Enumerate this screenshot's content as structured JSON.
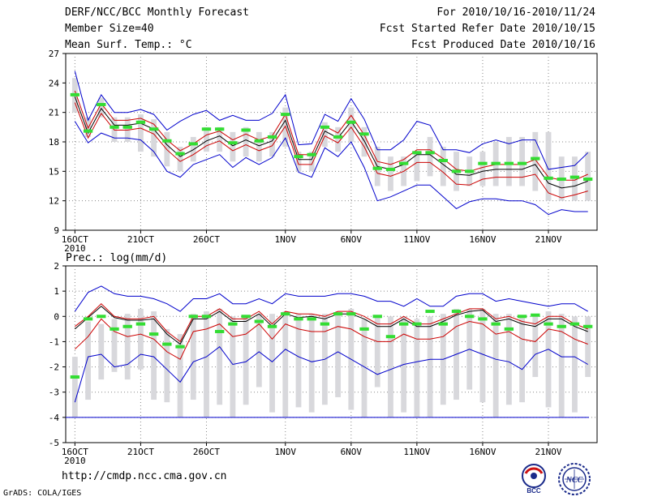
{
  "header": {
    "left": [
      "DERF/NCC/BCC Monthly Forecast",
      "Member Size=40",
      "Mean Surf. Temp.: °C"
    ],
    "right": [
      "For 2010/10/16-2010/11/24",
      "Fcst Started Refer Date 2010/10/15",
      "Fcst Produced Date 2010/10/16"
    ]
  },
  "footer": {
    "url": "http://cmdp.ncc.cma.gov.cn",
    "grads": "GrADS: COLA/IGES"
  },
  "logos": {
    "bcc": "BCC",
    "ncc": "NCC"
  },
  "colors": {
    "box": "#d8d8dc",
    "median": "#000000",
    "band_inner": "#cc0000",
    "band_outer": "#0000cc",
    "obs": "#33dd33",
    "grid": "#888888"
  },
  "chart_data": [
    {
      "type": "line",
      "title": "Mean Surf. Temp.: °C",
      "xlabel": "",
      "ylabel": "",
      "ylim": [
        9,
        27
      ],
      "yticks": [
        9,
        12,
        15,
        18,
        21,
        24,
        27
      ],
      "x": [
        1,
        2,
        3,
        4,
        5,
        6,
        7,
        8,
        9,
        10,
        11,
        12,
        13,
        14,
        15,
        16,
        17,
        18,
        19,
        20,
        21,
        22,
        23,
        24,
        25,
        26,
        27,
        28,
        29,
        30,
        31,
        32,
        33,
        34,
        35,
        36,
        37,
        38,
        39,
        40
      ],
      "xtick_labels": [
        {
          "day": 1,
          "label": "16OCT",
          "sub": "2010"
        },
        {
          "day": 6,
          "label": "21OCT"
        },
        {
          "day": 11,
          "label": "26OCT"
        },
        {
          "day": 17,
          "label": "1NOV"
        },
        {
          "day": 22,
          "label": "6NOV"
        },
        {
          "day": 27,
          "label": "11NOV"
        },
        {
          "day": 32,
          "label": "16NOV"
        },
        {
          "day": 37,
          "label": "21NOV"
        }
      ],
      "series": [
        {
          "name": "box_max",
          "values": [
            24.5,
            20.5,
            22.5,
            20.5,
            20.5,
            20.8,
            20.3,
            19,
            17.5,
            18.5,
            19.5,
            19.5,
            19,
            19.5,
            19,
            19,
            21.5,
            17,
            17,
            20,
            19.5,
            21.5,
            19.5,
            17.5,
            16.5,
            16.5,
            17,
            18.5,
            17.5,
            17,
            16.5,
            17,
            18,
            18.5,
            18.5,
            19,
            19,
            16.5,
            16.5,
            17
          ]
        },
        {
          "name": "box_min",
          "values": [
            21,
            18.5,
            20.5,
            18,
            18,
            17,
            16.5,
            15.5,
            15,
            16,
            17,
            17,
            16,
            16.5,
            16,
            16.5,
            17.5,
            15,
            15,
            17.5,
            17,
            18,
            16.5,
            13.5,
            13,
            13.5,
            14,
            14.5,
            13.5,
            13,
            13.5,
            13.5,
            13.5,
            13.5,
            13.5,
            13,
            12,
            12,
            12,
            12
          ]
        },
        {
          "name": "outer_upper",
          "values": [
            25.2,
            20.2,
            22.8,
            21,
            21,
            21.3,
            20.8,
            19.2,
            20.1,
            20.8,
            21.2,
            20.2,
            20.7,
            20.2,
            20.2,
            20.9,
            22.8,
            17.7,
            17.8,
            20.8,
            20.1,
            22.4,
            20.3,
            17.2,
            17.2,
            18.2,
            20.1,
            19.7,
            17.2,
            17.2,
            16.9,
            17.8,
            18.2,
            17.8,
            18.2,
            18.2,
            15.2,
            15.4,
            15.6,
            16.9
          ]
        },
        {
          "name": "inner_upper",
          "values": [
            23.2,
            19.4,
            21.9,
            20.2,
            20.2,
            20.4,
            19.8,
            18.2,
            17.1,
            17.8,
            18.7,
            19.1,
            18.2,
            18.8,
            18.2,
            18.6,
            20.8,
            16.7,
            16.7,
            19.6,
            18.9,
            20.7,
            18.7,
            16,
            15.7,
            16.2,
            17.2,
            17.2,
            16.3,
            15.2,
            15,
            15.4,
            15.7,
            15.7,
            15.7,
            16.2,
            14.4,
            14.1,
            14.1,
            14.7
          ]
        },
        {
          "name": "median",
          "values": [
            22.6,
            18.9,
            21.4,
            19.7,
            19.7,
            19.9,
            19.3,
            17.7,
            16.5,
            17.2,
            18.1,
            18.6,
            17.6,
            18.2,
            17.6,
            18.1,
            20.2,
            16.2,
            16.2,
            19.1,
            18.4,
            20.1,
            18.1,
            15.5,
            15.2,
            15.7,
            16.7,
            16.7,
            15.7,
            14.7,
            14.6,
            15,
            15.2,
            15.2,
            15.2,
            15.7,
            13.8,
            13.3,
            13.5,
            14
          ]
        },
        {
          "name": "inner_lower",
          "values": [
            22,
            18.4,
            20.9,
            19.2,
            19.2,
            19.4,
            18.8,
            17.2,
            16,
            16.7,
            17.6,
            18.1,
            17.1,
            17.7,
            17.1,
            17.6,
            19.6,
            15.7,
            15.7,
            18.6,
            17.9,
            19.5,
            17.5,
            14.8,
            14.5,
            15,
            15.9,
            15.9,
            14.9,
            13.7,
            13.6,
            14.2,
            14.4,
            14.4,
            14.4,
            14.7,
            12.8,
            12.3,
            12.6,
            13
          ]
        },
        {
          "name": "outer_lower",
          "values": [
            20.1,
            17.9,
            18.9,
            18.4,
            18.4,
            18.2,
            17,
            15,
            14.4,
            15.7,
            16.2,
            16.7,
            15.4,
            16.4,
            15.7,
            16.4,
            18.4,
            14.9,
            14.4,
            17.4,
            16.5,
            18,
            15.4,
            12,
            12.4,
            13,
            13.6,
            13.6,
            12.4,
            11.2,
            11.9,
            12.2,
            12.2,
            12,
            12,
            11.6,
            10.6,
            11.1,
            10.9,
            10.9
          ]
        },
        {
          "name": "observed",
          "values": [
            22.8,
            19.1,
            21.8,
            19.5,
            19.5,
            20,
            19.3,
            18.1,
            16.8,
            17.8,
            19.3,
            19.3,
            17.9,
            19.2,
            18.1,
            18.5,
            20.8,
            16.5,
            16.7,
            19.5,
            18.5,
            20,
            18.8,
            15.3,
            15.2,
            15.8,
            16.9,
            16.9,
            16.1,
            15,
            15,
            15.8,
            15.8,
            15.8,
            15.8,
            16.3,
            14.3,
            14.2,
            14.4,
            14.2
          ]
        }
      ]
    },
    {
      "type": "line",
      "title": "Prec.: log(mm/d)",
      "xlabel": "",
      "ylabel": "",
      "ylim": [
        -5,
        2
      ],
      "yticks": [
        -5,
        -4,
        -3,
        -2,
        -1,
        0,
        1,
        2
      ],
      "x": [
        1,
        2,
        3,
        4,
        5,
        6,
        7,
        8,
        9,
        10,
        11,
        12,
        13,
        14,
        15,
        16,
        17,
        18,
        19,
        20,
        21,
        22,
        23,
        24,
        25,
        26,
        27,
        28,
        29,
        30,
        31,
        32,
        33,
        34,
        35,
        36,
        37,
        38,
        39,
        40
      ],
      "xtick_labels": [
        {
          "day": 1,
          "label": "16OCT",
          "sub": "2010"
        },
        {
          "day": 6,
          "label": "21OCT"
        },
        {
          "day": 11,
          "label": "26OCT"
        },
        {
          "day": 17,
          "label": "1NOV"
        },
        {
          "day": 22,
          "label": "6NOV"
        },
        {
          "day": 27,
          "label": "11NOV"
        },
        {
          "day": 32,
          "label": "16NOV"
        },
        {
          "day": 37,
          "label": "21NOV"
        }
      ],
      "series": [
        {
          "name": "box_max",
          "values": [
            -1.6,
            -0.2,
            -0.3,
            -0.1,
            0.1,
            0.3,
            0.2,
            -0.5,
            -0.7,
            0.1,
            0.2,
            0.3,
            0,
            0,
            0.1,
            0.1,
            0.2,
            0.1,
            0.1,
            0.1,
            0.2,
            0.3,
            -0.1,
            0,
            0,
            0,
            -0.1,
            0,
            0.1,
            0.3,
            0.3,
            0.3,
            0.1,
            0.1,
            0,
            0,
            0.2,
            0.1,
            0,
            0
          ]
        },
        {
          "name": "box_min",
          "values": [
            -4,
            -3.3,
            -2.5,
            -2.2,
            -2.5,
            -2.1,
            -3.3,
            -3.4,
            -4,
            -3.3,
            -4,
            -3.5,
            -4,
            -3.5,
            -2.8,
            -3.8,
            -4,
            -3.6,
            -3.8,
            -3.5,
            -3.2,
            -3.7,
            -4,
            -2.8,
            -4,
            -3.8,
            -4,
            -4,
            -3.5,
            -3.3,
            -2.9,
            -3.4,
            -4,
            -3.5,
            -3.4,
            -2.4,
            -3.6,
            -4,
            -3.8,
            -2.4
          ]
        },
        {
          "name": "outer_upper",
          "values": [
            0.2,
            0.95,
            1.2,
            0.9,
            0.8,
            0.8,
            0.7,
            0.5,
            0.2,
            0.7,
            0.7,
            0.9,
            0.5,
            0.5,
            0.7,
            0.5,
            0.9,
            0.8,
            0.8,
            0.8,
            0.9,
            0.9,
            0.8,
            0.6,
            0.6,
            0.4,
            0.7,
            0.4,
            0.4,
            0.8,
            0.9,
            0.9,
            0.6,
            0.7,
            0.6,
            0.5,
            0.4,
            0.5,
            0.5,
            0.2
          ]
        },
        {
          "name": "inner_upper",
          "values": [
            -0.4,
            0,
            0.5,
            0,
            -0.1,
            -0.1,
            0,
            -0.6,
            -1,
            0,
            0,
            0.3,
            -0.1,
            -0.1,
            0.2,
            -0.3,
            0.2,
            0.1,
            0.1,
            0,
            0.2,
            0.2,
            0,
            -0.3,
            -0.3,
            0,
            -0.3,
            -0.3,
            -0.1,
            0.1,
            0.3,
            0.3,
            -0.1,
            0,
            -0.2,
            -0.3,
            0,
            0,
            -0.3,
            -0.5
          ]
        },
        {
          "name": "median",
          "values": [
            -0.5,
            -0.05,
            0.4,
            -0.05,
            -0.15,
            -0.15,
            -0.1,
            -0.7,
            -1.1,
            -0.1,
            -0.1,
            0.2,
            -0.2,
            -0.2,
            0.1,
            -0.4,
            0.1,
            -0.05,
            0,
            -0.1,
            0.1,
            0.1,
            -0.1,
            -0.4,
            -0.4,
            -0.1,
            -0.4,
            -0.4,
            -0.2,
            0.05,
            0.2,
            0.25,
            -0.2,
            -0.1,
            -0.3,
            -0.4,
            -0.1,
            -0.1,
            -0.4,
            -0.6
          ]
        },
        {
          "name": "inner_lower",
          "values": [
            -1.3,
            -0.8,
            -0.1,
            -0.6,
            -0.8,
            -0.7,
            -0.9,
            -1.4,
            -1.7,
            -0.6,
            -0.5,
            -0.3,
            -0.8,
            -0.7,
            -0.3,
            -0.9,
            -0.3,
            -0.5,
            -0.6,
            -0.6,
            -0.4,
            -0.5,
            -0.8,
            -1,
            -1,
            -0.7,
            -0.9,
            -0.9,
            -0.8,
            -0.4,
            -0.2,
            -0.3,
            -0.7,
            -0.6,
            -0.9,
            -1,
            -0.5,
            -0.6,
            -0.9,
            -1.1
          ]
        },
        {
          "name": "outer_lower",
          "values": [
            -3.4,
            -1.6,
            -1.5,
            -2,
            -1.9,
            -1.5,
            -1.6,
            -2.1,
            -2.6,
            -1.8,
            -1.6,
            -1.2,
            -1.9,
            -1.8,
            -1.4,
            -1.8,
            -1.3,
            -1.6,
            -1.8,
            -1.7,
            -1.4,
            -1.7,
            -2,
            -2.3,
            -2.1,
            -1.9,
            -1.8,
            -1.7,
            -1.7,
            -1.5,
            -1.3,
            -1.5,
            -1.7,
            -1.8,
            -2.1,
            -1.5,
            -1.3,
            -1.6,
            -1.6,
            -1.9
          ]
        },
        {
          "name": "observed",
          "values": [
            -2.4,
            -0.1,
            0,
            -0.5,
            -0.4,
            -0.3,
            -0.7,
            -1.1,
            -1.2,
            0,
            0,
            -0.6,
            -0.3,
            0,
            -0.2,
            -0.4,
            0.1,
            -0.1,
            -0.1,
            -0.3,
            0.1,
            0.1,
            -0.5,
            0,
            -0.8,
            -0.3,
            -0.3,
            0.2,
            -0.3,
            0.2,
            0,
            -0.1,
            -0.3,
            -0.5,
            0,
            0.05,
            -0.3,
            -0.4,
            -0.3,
            -0.4
          ]
        }
      ]
    }
  ],
  "panel_labels": [
    "",
    "Prec.: log(mm/d)"
  ]
}
